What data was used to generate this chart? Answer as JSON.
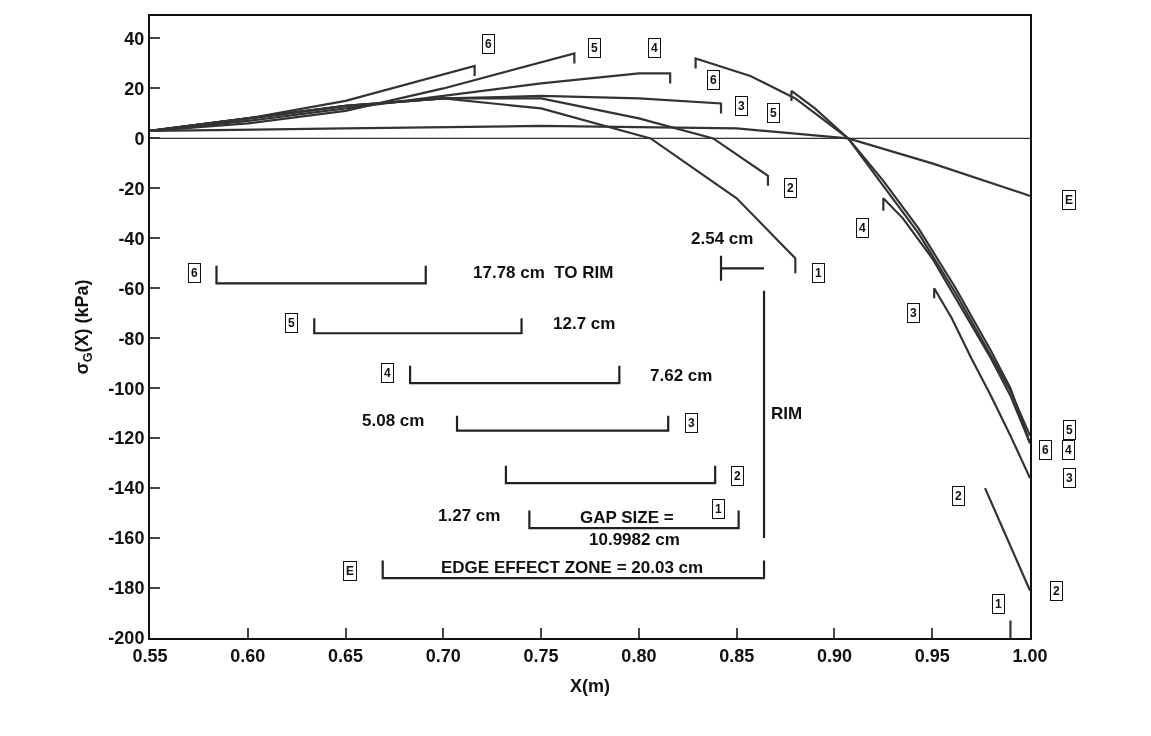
{
  "chart_data": {
    "type": "line",
    "xlabel": "X(m)",
    "ylabel": "σ$_{G}$(X) (kPa)",
    "xlim": [
      0.55,
      1.0
    ],
    "xticks": [
      {
        "value": 0.55,
        "label": "0.55"
      },
      {
        "value": 0.6,
        "label": "0.60"
      },
      {
        "value": 0.65,
        "label": "0.65"
      },
      {
        "value": 0.7,
        "label": "0.70"
      },
      {
        "value": 0.75,
        "label": "0.75"
      },
      {
        "value": 0.8,
        "label": "0.80"
      },
      {
        "value": 0.85,
        "label": "0.85"
      },
      {
        "value": 0.9,
        "label": "0.90"
      },
      {
        "value": 0.95,
        "label": "0.95"
      },
      {
        "value": 1.0,
        "label": "1.00"
      }
    ],
    "ylim": [
      -200,
      49
    ],
    "yticks": [
      40,
      20,
      0,
      -20,
      -40,
      -60,
      -80,
      -100,
      -120,
      -140,
      -160,
      -180,
      -200
    ],
    "marker": "none",
    "line_style": "solid",
    "ref_lines": [
      {
        "axis": "y",
        "value": 0,
        "color": "#333333"
      }
    ],
    "series": [
      {
        "color": "#333333",
        "x": [
          0.55,
          0.6,
          0.65,
          0.716,
          0.716
        ],
        "values": [
          3,
          8,
          15,
          29,
          25
        ]
      },
      {
        "color": "#333333",
        "x": [
          0.55,
          0.6,
          0.65,
          0.7,
          0.767,
          0.767
        ],
        "values": [
          3,
          6,
          11,
          20,
          34,
          30
        ]
      },
      {
        "color": "#333333",
        "x": [
          0.55,
          0.6,
          0.65,
          0.7,
          0.75,
          0.8,
          0.816,
          0.816
        ],
        "values": [
          3,
          7,
          12,
          17,
          22,
          26,
          26,
          22
        ]
      },
      {
        "color": "#333333",
        "x": [
          0.55,
          0.6,
          0.65,
          0.7,
          0.75,
          0.8,
          0.842,
          0.842
        ],
        "values": [
          3,
          8,
          13,
          16,
          17,
          16,
          14,
          10
        ]
      },
      {
        "color": "#333333",
        "x": [
          0.55,
          0.6,
          0.65,
          0.7,
          0.75,
          0.8,
          0.838,
          0.866,
          0.866
        ],
        "values": [
          3,
          8,
          13,
          16,
          16,
          8,
          0,
          -15,
          -19
        ]
      },
      {
        "color": "#333333",
        "x": [
          0.55,
          0.6,
          0.65,
          0.7,
          0.75,
          0.806,
          0.85,
          0.88,
          0.88
        ],
        "values": [
          3,
          8,
          13,
          16,
          12,
          0,
          -24,
          -48,
          -54
        ]
      },
      {
        "color": "#333333",
        "x": [
          0.55,
          0.65,
          0.75,
          0.85,
          0.907,
          0.95,
          1.0
        ],
        "values": [
          3,
          4,
          5,
          4,
          0,
          -10,
          -23
        ]
      },
      {
        "color": "#333333",
        "x": [
          0.829,
          0.829,
          0.857,
          0.88,
          0.907,
          0.925,
          0.943,
          0.962,
          0.98,
          0.99,
          1.0
        ],
        "values": [
          28,
          32,
          25,
          16,
          0,
          -17,
          -36,
          -60,
          -85,
          -100,
          -122
        ]
      },
      {
        "color": "#333333",
        "x": [
          0.878,
          0.878,
          0.89,
          0.907,
          0.925,
          0.943,
          0.962,
          0.98,
          0.99,
          1.0
        ],
        "values": [
          15,
          19,
          12,
          0,
          -19,
          -38,
          -62,
          -87,
          -101,
          -119
        ]
      },
      {
        "color": "#333333",
        "x": [
          0.925,
          0.925,
          0.935,
          0.95,
          0.965,
          0.98,
          0.99,
          1.0
        ],
        "values": [
          -29,
          -24,
          -32,
          -48,
          -68,
          -88,
          -103,
          -122
        ]
      },
      {
        "color": "#333333",
        "x": [
          0.951,
          0.951,
          0.96,
          0.97,
          0.98,
          0.99,
          1.0
        ],
        "values": [
          -64,
          -60,
          -72,
          -88,
          -103,
          -119,
          -136
        ]
      },
      {
        "color": "#333333",
        "x": [
          0.977,
          1.0
        ],
        "values": [
          -140,
          -181
        ]
      },
      {
        "color": "#333333",
        "x": [
          0.99,
          0.99
        ],
        "values": [
          -193,
          -200
        ]
      },
      {
        "color": "#222222",
        "x": [
          0.584,
          0.584,
          0.691,
          0.691
        ],
        "values": [
          -51,
          -58,
          -58,
          -51
        ]
      },
      {
        "color": "#222222",
        "x": [
          0.634,
          0.634,
          0.74,
          0.74
        ],
        "values": [
          -72,
          -78,
          -78,
          -72
        ]
      },
      {
        "color": "#222222",
        "x": [
          0.683,
          0.683,
          0.79,
          0.79
        ],
        "values": [
          -91,
          -98,
          -98,
          -91
        ]
      },
      {
        "color": "#222222",
        "x": [
          0.707,
          0.707,
          0.815,
          0.815
        ],
        "values": [
          -111,
          -117,
          -117,
          -111
        ]
      },
      {
        "color": "#222222",
        "x": [
          0.732,
          0.732,
          0.839,
          0.839
        ],
        "values": [
          -131,
          -138,
          -138,
          -131
        ]
      },
      {
        "color": "#222222",
        "x": [
          0.744,
          0.744,
          0.851,
          0.851
        ],
        "values": [
          -149,
          -156,
          -156,
          -149
        ]
      },
      {
        "color": "#222222",
        "x": [
          0.669,
          0.669,
          0.864,
          0.864
        ],
        "values": [
          -169,
          -176,
          -176,
          -169
        ]
      },
      {
        "color": "#222222",
        "x": [
          0.864,
          0.864
        ],
        "values": [
          -61,
          -160
        ]
      },
      {
        "color": "#222222",
        "x": [
          0.842,
          0.842,
          0.842,
          0.864
        ],
        "values": [
          -47,
          -57,
          -52,
          -52
        ]
      }
    ],
    "annotations": [
      {
        "text": "6",
        "x": 0.716,
        "y": 29
      },
      {
        "text": "5",
        "x": 0.767,
        "y": 34
      },
      {
        "text": "4",
        "x": 0.816,
        "y": 26
      },
      {
        "text": "6",
        "x": 0.829,
        "y": 28
      },
      {
        "text": "3",
        "x": 0.842,
        "y": 14
      },
      {
        "text": "5",
        "x": 0.878,
        "y": 15
      },
      {
        "text": "2",
        "x": 0.866,
        "y": -19
      },
      {
        "text": "1",
        "x": 0.88,
        "y": -54
      },
      {
        "text": "4",
        "x": 0.925,
        "y": -29
      },
      {
        "text": "3",
        "x": 0.951,
        "y": -64
      },
      {
        "text": "2",
        "x": 0.977,
        "y": -140
      },
      {
        "text": "1",
        "x": 0.99,
        "y": -193
      },
      {
        "text": "E",
        "x": 1.0,
        "y": -23
      },
      {
        "text": "5",
        "x": 1.0,
        "y": -119
      },
      {
        "text": "6",
        "x": 1.0,
        "y": -122
      },
      {
        "text": "4",
        "x": 1.0,
        "y": -122
      },
      {
        "text": "3",
        "x": 1.0,
        "y": -136
      },
      {
        "text": "2",
        "x": 1.0,
        "y": -181
      },
      {
        "text": "6",
        "x": 0.584,
        "y": -51
      },
      {
        "text": "5",
        "x": 0.634,
        "y": -72
      },
      {
        "text": "4",
        "x": 0.683,
        "y": -91
      },
      {
        "text": "3",
        "x": 0.815,
        "y": -111
      },
      {
        "text": "2",
        "x": 0.839,
        "y": -131
      },
      {
        "text": "1",
        "x": 0.851,
        "y": -149
      },
      {
        "text": "E",
        "x": 0.669,
        "y": -169
      },
      {
        "text": "17.78 cm  TO RIM",
        "x": 0.691,
        "y": -51
      },
      {
        "text": "12.7 cm",
        "x": 0.74,
        "y": -72
      },
      {
        "text": "7.62 cm",
        "x": 0.79,
        "y": -91
      },
      {
        "text": "5.08 cm",
        "x": 0.707,
        "y": -111
      },
      {
        "text": "1.27 cm",
        "x": 0.744,
        "y": -149
      },
      {
        "text": "GAP SIZE =",
        "x": 0.794,
        "y": -156
      },
      {
        "text": "10.9982 cm",
        "x": 0.798,
        "y": -156
      },
      {
        "text": "EDGE EFFECT ZONE = 20.03 cm",
        "x": 0.766,
        "y": -176
      },
      {
        "text": "RIM",
        "x": 0.864,
        "y": -110
      },
      {
        "text": "2.54 cm",
        "x": 0.853,
        "y": -52
      }
    ]
  }
}
